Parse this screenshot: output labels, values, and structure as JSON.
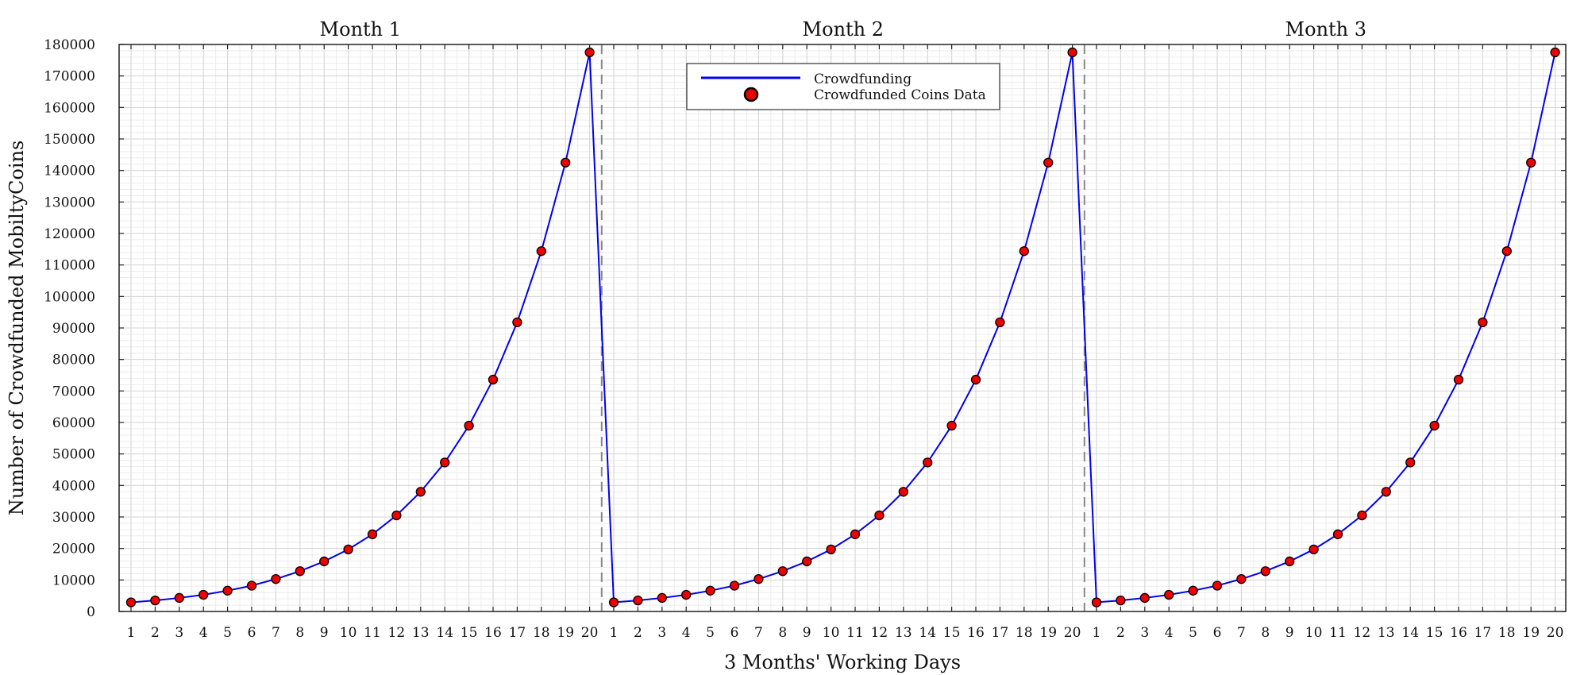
{
  "chart_data": {
    "type": "line",
    "xlabel": "3 Months' Working Days",
    "ylabel": "Number of Crowdfunded MobiltyCoins",
    "ylim": [
      0,
      180000
    ],
    "yticks": [
      0,
      10000,
      20000,
      30000,
      40000,
      50000,
      60000,
      70000,
      80000,
      90000,
      100000,
      110000,
      120000,
      130000,
      140000,
      150000,
      160000,
      170000,
      180000
    ],
    "grid": true,
    "legend_position": "top-center",
    "months": [
      "Month 1",
      "Month 2",
      "Month 3"
    ],
    "x": [
      1,
      2,
      3,
      4,
      5,
      6,
      7,
      8,
      9,
      10,
      11,
      12,
      13,
      14,
      15,
      16,
      17,
      18,
      19,
      20,
      1,
      2,
      3,
      4,
      5,
      6,
      7,
      8,
      9,
      10,
      11,
      12,
      13,
      14,
      15,
      16,
      17,
      18,
      19,
      20,
      1,
      2,
      3,
      4,
      5,
      6,
      7,
      8,
      9,
      10,
      11,
      12,
      13,
      14,
      15,
      16,
      17,
      18,
      19,
      20
    ],
    "series": [
      {
        "name": "Crowdfunding",
        "color": "#0000ee",
        "style": "line",
        "values": [
          2900,
          3500,
          4300,
          5300,
          6600,
          8200,
          10300,
          12800,
          15900,
          19700,
          24500,
          30500,
          38000,
          47300,
          59000,
          73600,
          91800,
          114400,
          142500,
          177500,
          2900,
          3500,
          4300,
          5300,
          6600,
          8200,
          10300,
          12800,
          15900,
          19700,
          24500,
          30500,
          38000,
          47300,
          59000,
          73600,
          91800,
          114400,
          142500,
          177500,
          2900,
          3500,
          4300,
          5300,
          6600,
          8200,
          10300,
          12800,
          15900,
          19700,
          24500,
          30500,
          38000,
          47300,
          59000,
          73600,
          91800,
          114400,
          142500,
          177500
        ]
      },
      {
        "name": "Crowdfunded Coins Data",
        "color": "#ee0000",
        "style": "marker",
        "values": [
          2900,
          3500,
          4300,
          5300,
          6600,
          8200,
          10300,
          12800,
          15900,
          19700,
          24500,
          30500,
          38000,
          47300,
          59000,
          73600,
          91800,
          114400,
          142500,
          177500,
          2900,
          3500,
          4300,
          5300,
          6600,
          8200,
          10300,
          12800,
          15900,
          19700,
          24500,
          30500,
          38000,
          47300,
          59000,
          73600,
          91800,
          114400,
          142500,
          177500,
          2900,
          3500,
          4300,
          5300,
          6600,
          8200,
          10300,
          12800,
          15900,
          19700,
          24500,
          30500,
          38000,
          47300,
          59000,
          73600,
          91800,
          114400,
          142500,
          177500
        ]
      }
    ]
  }
}
